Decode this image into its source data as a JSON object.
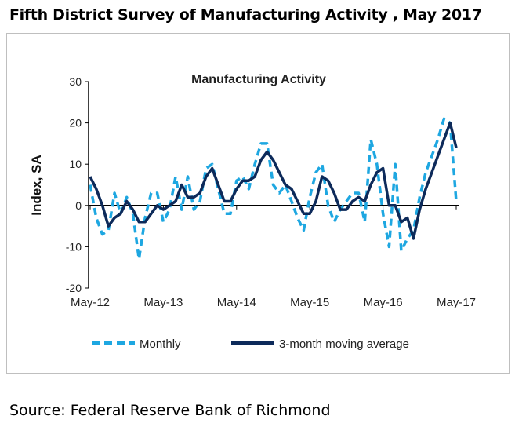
{
  "page_title": "Fifth District Survey of Manufacturing  Activity , May 2017",
  "source": "Source: Federal Reserve Bank of Richmond",
  "chart_data": {
    "type": "line",
    "title": "Manufacturing Activity",
    "ylabel": "Index, SA",
    "xlabel": "",
    "ylim": [
      -20,
      30
    ],
    "yticks": [
      "30",
      "20",
      "10",
      "0",
      "-10",
      "-20"
    ],
    "xticks": [
      "May-12",
      "May-13",
      "May-14",
      "May-15",
      "May-16",
      "May-17"
    ],
    "x_start": "May-12",
    "x_end": "May-17",
    "grid": false,
    "legend": "bottom",
    "series": [
      {
        "name": "Monthly",
        "color": "#1ea7e1",
        "style": "dashed",
        "values": [
          5,
          -3,
          -7,
          -6,
          3,
          -2,
          2,
          -2,
          -13,
          -3,
          3,
          3,
          -4,
          -1,
          7,
          -1,
          7,
          -1,
          1,
          9,
          10,
          4,
          -2,
          -2,
          6,
          7,
          4,
          10,
          15,
          15,
          5,
          3,
          5,
          1,
          -3,
          -6,
          2,
          8,
          10,
          0,
          -4,
          -1,
          1,
          3,
          3,
          -4,
          16,
          10,
          -2,
          -10,
          10,
          -11,
          -8,
          -6,
          2,
          8,
          12,
          16,
          21,
          20,
          1
        ]
      },
      {
        "name": "3-month moving average",
        "color": "#0d2a5a",
        "style": "solid",
        "values": [
          7,
          4,
          0,
          -5,
          -3,
          -2,
          1,
          -1,
          -4,
          -4,
          -2,
          0,
          -1,
          0,
          1,
          5,
          2,
          2,
          3,
          7,
          9,
          5,
          1,
          1,
          4,
          6,
          6,
          7,
          11,
          13,
          11,
          8,
          5,
          4,
          1,
          -2,
          -2,
          1,
          7,
          6,
          3,
          -1,
          -1,
          1,
          2,
          1,
          5,
          8,
          9,
          0,
          0,
          -4,
          -3,
          -8,
          -1,
          4,
          8,
          12,
          16,
          20,
          14
        ]
      }
    ]
  }
}
